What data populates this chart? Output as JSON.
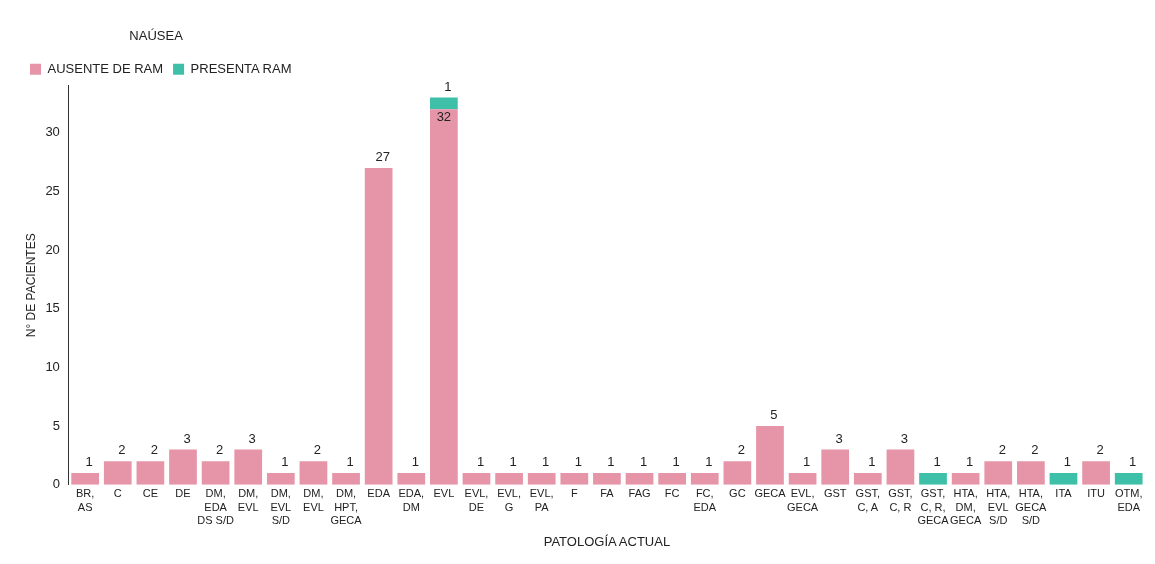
{
  "chart_data": {
    "type": "bar",
    "xlabel": "PATOLOGÍA ACTUAL",
    "ylabel": "N° DE PACIENTES",
    "legend_title": "NAÚSEA",
    "categories": [
      "BR,\nAS",
      "C",
      "CE",
      "DE",
      "DM,\nEDA\nDS S/D",
      "DM,\nEVL",
      "DM,\nEVL\nS/D",
      "DM,\nEVL",
      "DM,\nHPT,\nGECA",
      "EDA",
      "EDA,\nDM",
      "EVL",
      "EVL,\nDE",
      "EVL,\nG",
      "EVL,\nPA",
      "F",
      "FA",
      "FAG",
      "FC",
      "FC,\nEDA",
      "GC",
      "GECA",
      "EVL,\nGECA",
      "GST",
      "GST,\nC, A",
      "GST,\nC, R",
      "GST,\nC, R,\nGECA",
      "HTA,\nDM,\nGECA",
      "HTA,\nEVL\nS/D",
      "HTA,\nGECA\nS/D",
      "ITA",
      "ITU",
      "OTM,\nEDA"
    ],
    "series": [
      {
        "name": "AUSENTE DE RAM",
        "color": "#e695a8",
        "values": [
          1,
          2,
          2,
          3,
          2,
          3,
          1,
          2,
          1,
          27,
          1,
          32,
          1,
          1,
          1,
          1,
          1,
          1,
          1,
          1,
          2,
          5,
          1,
          3,
          1,
          3,
          null,
          1,
          2,
          2,
          null,
          2,
          null
        ]
      },
      {
        "name": "PRESENTA RAM",
        "color": "#3dbfa8",
        "values": [
          null,
          null,
          null,
          null,
          null,
          null,
          null,
          null,
          null,
          null,
          null,
          1,
          null,
          null,
          null,
          null,
          null,
          null,
          null,
          null,
          null,
          null,
          null,
          null,
          null,
          null,
          1,
          null,
          null,
          null,
          1,
          null,
          1
        ]
      }
    ],
    "stacked": true,
    "ylim": [
      0,
      34
    ],
    "yticks": [
      0,
      5,
      10,
      15,
      20,
      25,
      30
    ],
    "grid": false,
    "legend": "top left",
    "data_labels": true
  }
}
